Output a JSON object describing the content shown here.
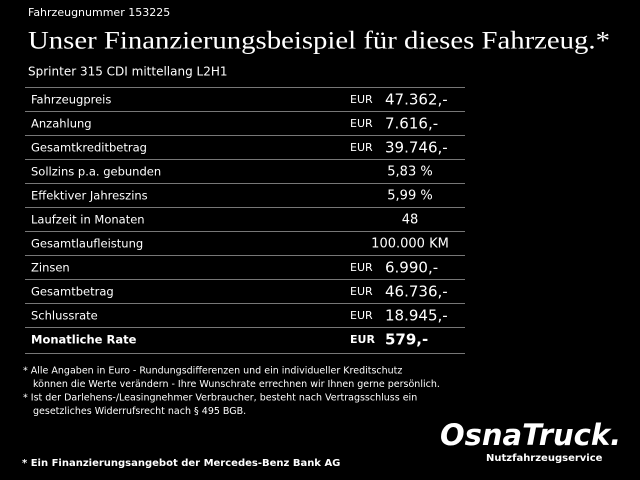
{
  "header": {
    "vehicle_number": "Fahrzeugnummer 153225",
    "title": "Unser Finanzierungsbeispiel für dieses Fahrzeug.*",
    "model": "Sprinter 315 CDI mittellang L2H1"
  },
  "table": {
    "rows": [
      {
        "label": "Fahrzeugpreis",
        "currency": "EUR",
        "value": "47.362,-"
      },
      {
        "label": "Anzahlung",
        "currency": "EUR",
        "value": "7.616,-"
      },
      {
        "label": "Gesamtkreditbetrag",
        "currency": "EUR",
        "value": "39.746,-"
      },
      {
        "label": "Sollzins p.a. gebunden",
        "value": "5,83 %"
      },
      {
        "label": "Effektiver Jahreszins",
        "value": "5,99 %"
      },
      {
        "label": "Laufzeit in Monaten",
        "value": "48"
      },
      {
        "label": "Gesamtlaufleistung",
        "value": "100.000 KM"
      },
      {
        "label": "Zinsen",
        "currency": "EUR",
        "value": "6.990,-"
      },
      {
        "label": "Gesamtbetrag",
        "currency": "EUR",
        "value": "46.736,-"
      },
      {
        "label": "Schlussrate",
        "currency": "EUR",
        "value": "18.945,-"
      },
      {
        "label": "Monatliche Rate",
        "currency": "EUR",
        "value": "579,-"
      }
    ]
  },
  "footnotes": [
    "* Alle Angaben in Euro - Rundungsdifferenzen und ein individueller Kreditschutz",
    "können die Werte verändern - Ihre Wunschrate errechnen wir Ihnen gerne persönlich.",
    "* Ist der Darlehens-/Leasingnehmer Verbraucher, besteht nach Vertragsschluss ein",
    "gesetzliches Widerrufsrecht nach § 495 BGB."
  ],
  "logo": {
    "name": "OsnaTruck.",
    "tagline": "Nutzfahrzeugservice"
  },
  "footer": "* Ein Finanzierungsangebot der Mercedes-Benz Bank AG"
}
